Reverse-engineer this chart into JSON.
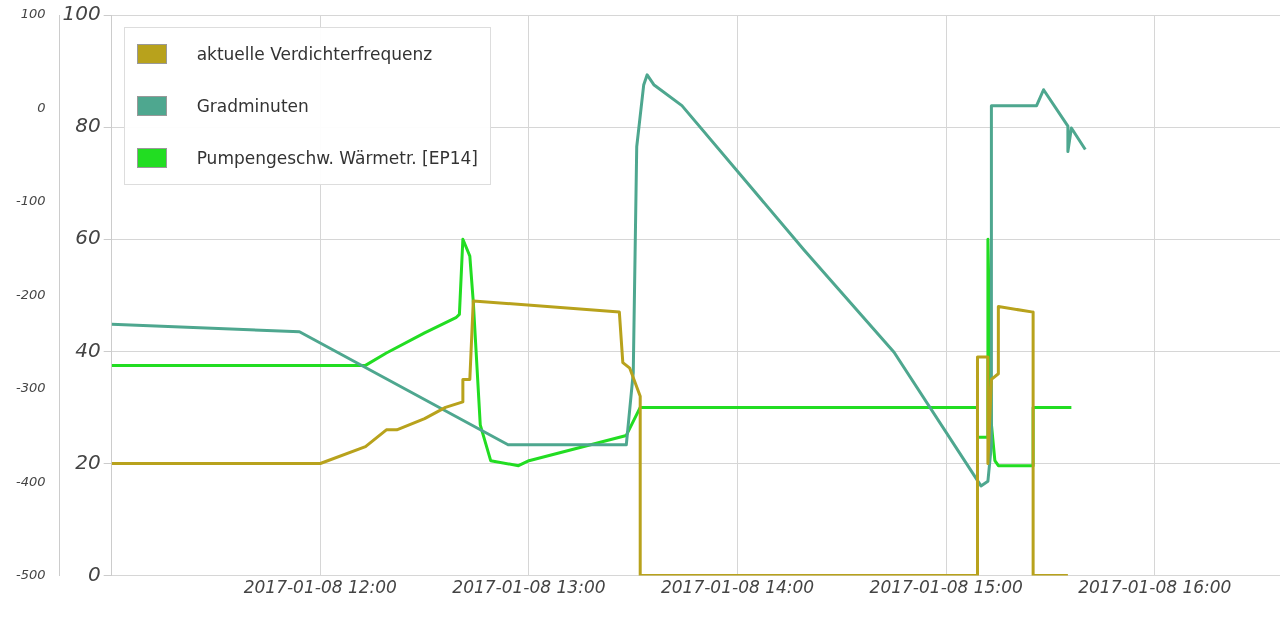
{
  "chart_data": {
    "type": "line",
    "xlim": [
      "2017-01-08T11:00",
      "2017-01-08T16:36"
    ],
    "xticks": [
      {
        "value": "2017-01-08T12:00",
        "label": "2017-01-08 12:00"
      },
      {
        "value": "2017-01-08T13:00",
        "label": "2017-01-08 13:00"
      },
      {
        "value": "2017-01-08T14:00",
        "label": "2017-01-08 14:00"
      },
      {
        "value": "2017-01-08T15:00",
        "label": "2017-01-08 15:00"
      },
      {
        "value": "2017-01-08T16:00",
        "label": "2017-01-08 16:00"
      }
    ],
    "ylim": [
      0,
      100
    ],
    "yticks": [
      0,
      20,
      40,
      60,
      80,
      100
    ],
    "y2lim": [
      -500,
      100
    ],
    "y2ticks": [
      -500,
      -400,
      -300,
      -200,
      -100,
      0,
      100
    ],
    "grid": true,
    "legend": "top left",
    "marker": "none",
    "line_style": "solid",
    "series": [
      {
        "name": "aktuelle Verdichterfrequenz",
        "color": "#b8a21c",
        "x": [
          "2017-01-08T11:00",
          "2017-01-08T12:00",
          "2017-01-08T12:13",
          "2017-01-08T12:19",
          "2017-01-08T12:22",
          "2017-01-08T12:30",
          "2017-01-08T12:36",
          "2017-01-08T12:41",
          "2017-01-08T12:41",
          "2017-01-08T12:43",
          "2017-01-08T12:44",
          "2017-01-08T13:26",
          "2017-01-08T13:27",
          "2017-01-08T13:29",
          "2017-01-08T13:32",
          "2017-01-08T13:32",
          "2017-01-08T15:09",
          "2017-01-08T15:09",
          "2017-01-08T15:12",
          "2017-01-08T15:12",
          "2017-01-08T15:13",
          "2017-01-08T15:15",
          "2017-01-08T15:15",
          "2017-01-08T15:25",
          "2017-01-08T15:25",
          "2017-01-08T15:35"
        ],
        "values": [
          20,
          20,
          23,
          26,
          26,
          28,
          30,
          31,
          35,
          35,
          49,
          47,
          38,
          37,
          32,
          0,
          0,
          39,
          39,
          20,
          35,
          36,
          48,
          47,
          0,
          0
        ]
      },
      {
        "name": "Gradminuten",
        "color": "#4ea78f",
        "axis": "y2",
        "x": [
          "2017-01-08T11:00",
          "2017-01-08T11:54",
          "2017-01-08T12:54",
          "2017-01-08T13:28",
          "2017-01-08T13:30",
          "2017-01-08T13:31",
          "2017-01-08T13:33",
          "2017-01-08T13:34",
          "2017-01-08T13:36",
          "2017-01-08T13:44",
          "2017-01-08T14:19",
          "2017-01-08T14:45",
          "2017-01-08T15:10",
          "2017-01-08T15:12",
          "2017-01-08T15:13",
          "2017-01-08T15:13",
          "2017-01-08T15:26",
          "2017-01-08T15:28",
          "2017-01-08T15:35",
          "2017-01-08T15:35",
          "2017-01-08T15:36",
          "2017-01-08T15:40"
        ],
        "values": [
          -231,
          -239,
          -360,
          -360,
          -283,
          -41,
          25,
          36,
          25,
          3,
          -151,
          -261,
          -404,
          -399,
          -360,
          3,
          3,
          20,
          -19,
          -46,
          -21,
          -44
        ]
      },
      {
        "name": "Pumpengeschw. Wärmetr. [EP14]",
        "color": "#22dd22",
        "x": [
          "2017-01-08T11:00",
          "2017-01-08T12:13",
          "2017-01-08T12:19",
          "2017-01-08T12:30",
          "2017-01-08T12:39",
          "2017-01-08T12:40",
          "2017-01-08T12:41",
          "2017-01-08T12:43",
          "2017-01-08T12:44",
          "2017-01-08T12:46",
          "2017-01-08T12:49",
          "2017-01-08T12:57",
          "2017-01-08T13:00",
          "2017-01-08T13:28",
          "2017-01-08T13:32",
          "2017-01-08T15:09",
          "2017-01-08T15:09",
          "2017-01-08T15:12",
          "2017-01-08T15:12",
          "2017-01-08T15:13",
          "2017-01-08T15:14",
          "2017-01-08T15:15",
          "2017-01-08T15:25",
          "2017-01-08T15:25",
          "2017-01-08T15:36"
        ],
        "values": [
          37.5,
          37.5,
          39.7,
          43.3,
          46,
          46.6,
          60,
          57,
          48.8,
          26.9,
          20.5,
          19.6,
          20.5,
          25,
          30,
          30,
          24.7,
          24.7,
          60,
          27,
          20.5,
          19.6,
          19.6,
          30,
          30
        ]
      }
    ]
  }
}
